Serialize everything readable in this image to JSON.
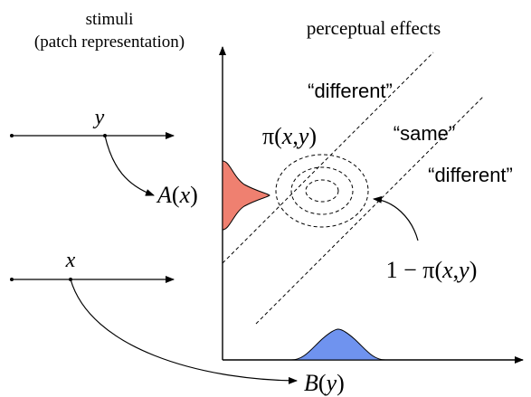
{
  "left_header": {
    "line1": "stimuli",
    "line2": "(patch representation)"
  },
  "right_header": "perceptual effects",
  "stimulus_y": {
    "label": "y"
  },
  "stimulus_x": {
    "label": "x"
  },
  "axis_y_label": {
    "name": "A",
    "open": "(",
    "var": "x",
    "close": ")"
  },
  "axis_x_label": {
    "name": "B",
    "open": "(",
    "var": "y",
    "close": ")"
  },
  "region_labels": {
    "different_top": "“different”",
    "same": "“same”",
    "different_right": "“different”"
  },
  "pi_label": {
    "pi": "π",
    "open": "(",
    "x": "x",
    "comma": ",",
    "y": "y",
    "close": ")"
  },
  "one_minus_pi_label": {
    "one": "1",
    "minus": " − ",
    "pi": "π",
    "open": "(",
    "x": "x",
    "comma": ",",
    "y": "y",
    "close": ")"
  },
  "colors": {
    "a_distribution": "#ef8070",
    "b_distribution": "#6f93ef",
    "pi_region": "#b772e0",
    "pi_overlap": "#7a3f84",
    "ink": "#000000"
  }
}
